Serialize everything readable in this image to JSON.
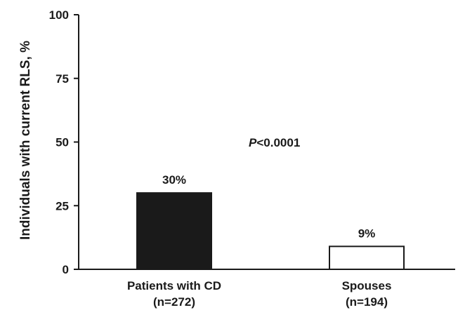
{
  "chart_data": {
    "type": "bar",
    "ylabel": "Individuals with current RLS, %",
    "ylim": [
      0,
      100
    ],
    "yticks": [
      0,
      25,
      50,
      75,
      100
    ],
    "categories": [
      {
        "line1": "Patients with CD",
        "line2": "(n=272)"
      },
      {
        "line1": "Spouses",
        "line2": "(n=194)"
      }
    ],
    "values": [
      30,
      9
    ],
    "value_labels": [
      "30%",
      "9%"
    ],
    "bar_colors": [
      "#1a1a1a",
      "#ffffff"
    ],
    "annotation": {
      "italic": "P",
      "rest": "<0.0001"
    },
    "grid": false,
    "legend": "none"
  }
}
